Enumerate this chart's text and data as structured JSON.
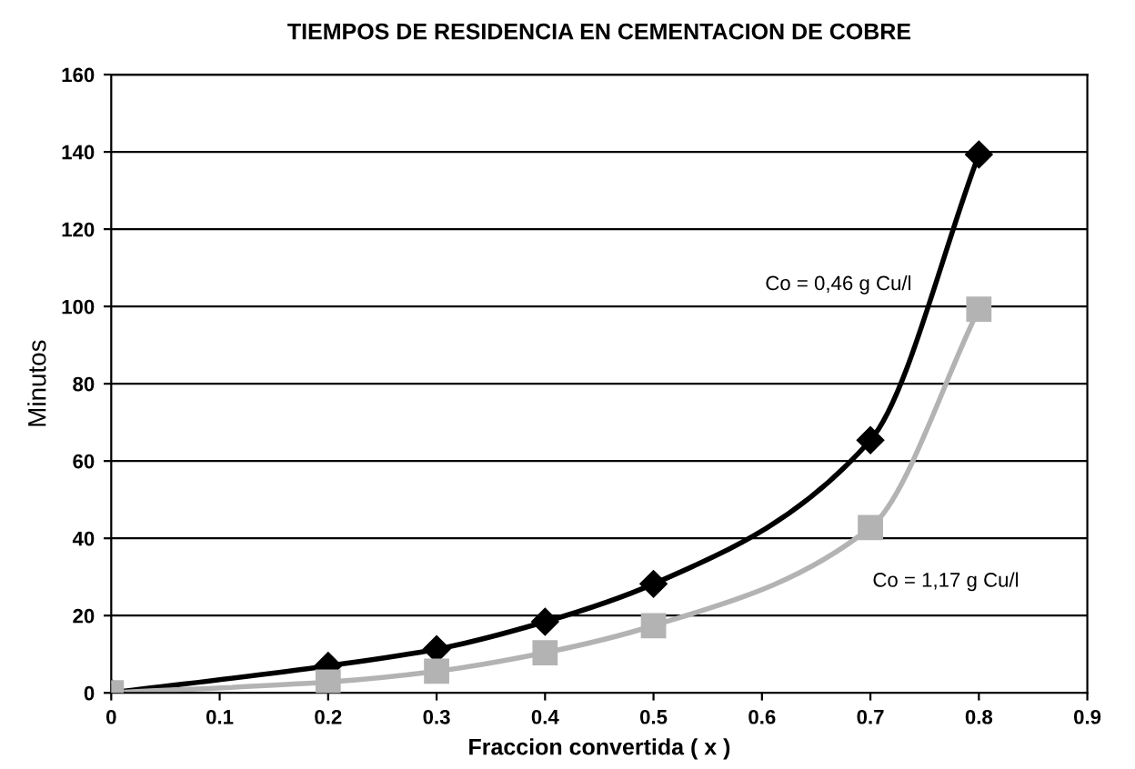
{
  "chart_data": {
    "type": "line",
    "title": "TIEMPOS DE RESIDENCIA EN CEMENTACION DE COBRE",
    "xlabel": "Fraccion convertida ( x )",
    "ylabel": "Minutos",
    "x": [
      0,
      0.2,
      0.3,
      0.4,
      0.5,
      0.7,
      0.8
    ],
    "series": [
      {
        "name": "Co = 0,46 g Cu/l",
        "color": "#000000",
        "marker": "diamond",
        "values": [
          0,
          7,
          11.3,
          18.4,
          28.2,
          65.4,
          139.3
        ]
      },
      {
        "name": "Co = 1,17 g Cu/l",
        "color": "#b3b3b3",
        "marker": "square",
        "values": [
          0,
          2.8,
          5.6,
          10.4,
          17.4,
          42.8,
          99.3
        ]
      }
    ],
    "xlim": [
      0,
      0.9
    ],
    "xticks": [
      0,
      0.1,
      0.2,
      0.3,
      0.4,
      0.5,
      0.6,
      0.7,
      0.8,
      0.9
    ],
    "ylim": [
      0,
      160
    ],
    "yticks": [
      0,
      20,
      40,
      60,
      80,
      100,
      120,
      140,
      160
    ],
    "grid": "y",
    "legend": false
  }
}
